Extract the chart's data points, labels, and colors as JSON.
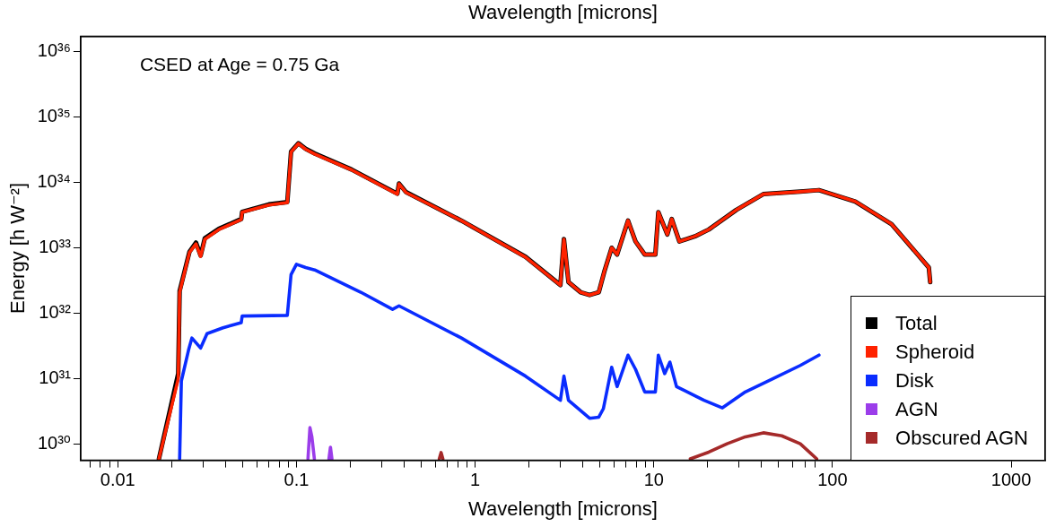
{
  "chart_data": {
    "type": "line",
    "x2label": "Wavelength [microns]",
    "xlabel": "Wavelength [microns]",
    "ylabel": "Energy [h W⁻²]",
    "annotations": [
      "CSED at Age = 0.75 Ga"
    ],
    "log": "xy",
    "grid": false,
    "legend": "bottom right",
    "marker": "none",
    "line_style": "solid",
    "xlim": [
      0.0062,
      1550
    ],
    "ylim": [
      5.7e+29,
      1.7e+36
    ],
    "xticks": [
      {
        "value": 0.007,
        "label": null
      },
      {
        "value": 0.008,
        "label": null
      },
      {
        "value": 0.009,
        "label": null
      },
      0.01,
      {
        "value": 0.02,
        "label": null
      },
      {
        "value": 0.03,
        "label": null
      },
      {
        "value": 0.04,
        "label": null
      },
      {
        "value": 0.05,
        "label": null
      },
      {
        "value": 0.06,
        "label": null
      },
      {
        "value": 0.07,
        "label": null
      },
      {
        "value": 0.08,
        "label": null
      },
      {
        "value": 0.09,
        "label": null
      },
      0.1,
      {
        "value": 0.2,
        "label": null
      },
      {
        "value": 0.3,
        "label": null
      },
      {
        "value": 0.4,
        "label": null
      },
      {
        "value": 0.5,
        "label": null
      },
      {
        "value": 0.6,
        "label": null
      },
      {
        "value": 0.7,
        "label": null
      },
      {
        "value": 0.8,
        "label": null
      },
      {
        "value": 0.9,
        "label": null
      },
      1,
      {
        "value": 2,
        "label": null
      },
      {
        "value": 3,
        "label": null
      },
      {
        "value": 4,
        "label": null
      },
      {
        "value": 5,
        "label": null
      },
      {
        "value": 6,
        "label": null
      },
      {
        "value": 7,
        "label": null
      },
      {
        "value": 8,
        "label": null
      },
      {
        "value": 9,
        "label": null
      },
      10,
      {
        "value": 20,
        "label": null
      },
      {
        "value": 30,
        "label": null
      },
      {
        "value": 40,
        "label": null
      },
      {
        "value": 50,
        "label": null
      },
      {
        "value": 60,
        "label": null
      },
      {
        "value": 70,
        "label": null
      },
      {
        "value": 80,
        "label": null
      },
      100,
      1000
    ],
    "yticks": [
      {
        "value": 1e+30,
        "label": "10³⁰"
      },
      {
        "value": 1e+31,
        "label": "10³¹"
      },
      {
        "value": 1e+32,
        "label": "10³²"
      },
      {
        "value": 1e+33,
        "label": "10³³"
      },
      {
        "value": 1e+34,
        "label": "10³⁴"
      },
      {
        "value": 1e+35,
        "label": "10³⁵"
      },
      {
        "value": 1e+36,
        "label": "10³⁶"
      }
    ],
    "series": [
      {
        "name": "Total",
        "color": "#000000",
        "x": [
          0.017,
          0.0218,
          0.0222,
          0.0252,
          0.0274,
          0.0291,
          0.0307,
          0.0368,
          0.0491,
          0.0497,
          0.0701,
          0.0889,
          0.0933,
          0.1025,
          0.1126,
          0.1265,
          0.2034,
          0.367,
          0.375,
          0.41,
          0.838,
          1.914,
          3.0,
          3.14,
          3.33,
          3.89,
          4.37,
          4.92,
          5.28,
          5.81,
          6.23,
          7.17,
          7.9,
          8.9,
          10.2,
          10.6,
          11.9,
          12.6,
          13.9,
          17.0,
          20.3,
          29,
          41,
          66,
          84,
          134,
          214,
          346,
          352
        ],
        "values": [
          6e+29,
          1.2e+31,
          2.2e+32,
          8.7e+32,
          1.2e+33,
          7.6e+32,
          1.4e+33,
          1.95e+33,
          2.75e+33,
          3.55e+33,
          4.6e+33,
          5e+33,
          2.95e+34,
          3.95e+34,
          3.25e+34,
          2.75e+34,
          1.57e+34,
          6.7e+33,
          9.6e+33,
          7.1e+33,
          2.6e+33,
          7.3e+32,
          2.7e+32,
          1.36e+33,
          3e+32,
          2.1e+32,
          1.9e+32,
          2.1e+32,
          4.3e+32,
          1e+33,
          7.9e+32,
          2.6e+33,
          1.25e+33,
          7.9e+32,
          7.9e+32,
          3.5e+33,
          1.6e+33,
          2.75e+33,
          1.25e+33,
          1.5e+33,
          1.9e+33,
          3.8e+33,
          6.6e+33,
          7.2e+33,
          7.6e+33,
          5.1e+33,
          2.3e+33,
          5e+32,
          3e+32
        ]
      },
      {
        "name": "Spheroid",
        "color": "#ff2200",
        "x": [
          0.017,
          0.0218,
          0.0222,
          0.0252,
          0.0274,
          0.0291,
          0.0307,
          0.0368,
          0.0491,
          0.0497,
          0.0701,
          0.0889,
          0.0933,
          0.1025,
          0.1126,
          0.1265,
          0.2034,
          0.367,
          0.375,
          0.41,
          0.838,
          1.914,
          3.0,
          3.14,
          3.33,
          3.89,
          4.37,
          4.92,
          5.28,
          5.81,
          6.23,
          7.17,
          7.9,
          8.9,
          10.2,
          10.6,
          11.9,
          12.6,
          13.9,
          17.0,
          20.3,
          29,
          41,
          66,
          84,
          134,
          214,
          346,
          352
        ],
        "values": [
          6e+29,
          1e+31,
          2.1e+32,
          8.5e+32,
          1.15e+33,
          7.4e+32,
          1.35e+33,
          1.9e+33,
          2.7e+33,
          3.5e+33,
          4.5e+33,
          4.9e+33,
          2.9e+34,
          3.9e+34,
          3.2e+34,
          2.7e+34,
          1.55e+34,
          6.6e+33,
          9.5e+33,
          7e+33,
          2.6e+33,
          7.2e+32,
          2.7e+32,
          1.35e+33,
          3e+32,
          2.1e+32,
          1.9e+32,
          2.1e+32,
          4.3e+32,
          1e+33,
          7.9e+32,
          2.6e+33,
          1.25e+33,
          7.9e+32,
          7.9e+32,
          3.5e+33,
          1.6e+33,
          2.75e+33,
          1.25e+33,
          1.5e+33,
          1.9e+33,
          3.8e+33,
          6.6e+33,
          7.2e+33,
          7.6e+33,
          5.1e+33,
          2.3e+33,
          5e+32,
          3e+32
        ]
      },
      {
        "name": "Disk",
        "color": "#0a2cff",
        "x": [
          0.0222,
          0.0227,
          0.0249,
          0.026,
          0.0291,
          0.0316,
          0.0388,
          0.0491,
          0.0497,
          0.0889,
          0.0933,
          0.1,
          0.1126,
          0.1265,
          0.229,
          0.345,
          0.375,
          0.838,
          1.914,
          3.0,
          3.14,
          3.33,
          4.37,
          4.92,
          5.22,
          5.81,
          6.23,
          7.17,
          7.9,
          8.9,
          10.2,
          10.6,
          11.5,
          12.3,
          13.4,
          17,
          19.1,
          24.2,
          32.5,
          46.3,
          66,
          84
        ],
        "values": [
          6e+29,
          9.3e+30,
          2.75e+31,
          4.2e+31,
          2.95e+31,
          4.9e+31,
          6e+31,
          7.2e+31,
          9.1e+31,
          9.3e+31,
          3.9e+32,
          5.6e+32,
          5e+32,
          4.6e+32,
          2.1e+32,
          1.15e+32,
          1.3e+32,
          4.2e+31,
          1.1e+31,
          4.7e+30,
          1.1e+31,
          4.7e+30,
          2.5e+30,
          2.6e+30,
          3.5e+30,
          1.5e+31,
          7.6e+30,
          2.3e+31,
          1.4e+31,
          6.3e+30,
          6.3e+30,
          2.3e+31,
          1.2e+31,
          1.8e+31,
          7.6e+30,
          5.5e+30,
          4.7e+30,
          3.6e+30,
          6.3e+30,
          1e+31,
          1.6e+31,
          2.3e+31
        ]
      },
      {
        "name": "AGN",
        "color": "#9b3dea",
        "x": [
          0.116,
          0.119,
          0.122,
          0.126,
          0.14,
          0.152,
          0.155,
          0.158
        ],
        "values": [
          6e+29,
          1.8e+30,
          1.3e+30,
          6e+29,
          null,
          6e+29,
          9e+29,
          6e+29
        ]
      },
      {
        "name": "Obscured AGN",
        "color": "#a52a2a",
        "x": [
          0.63,
          0.645,
          0.66,
          5,
          16,
          20.3,
          25.7,
          32.5,
          41,
          52,
          66,
          81.6
        ],
        "values": [
          6e+29,
          7.5e+29,
          6e+29,
          null,
          6e+29,
          7.6e+29,
          1.02e+30,
          1.3e+30,
          1.5e+30,
          1.35e+30,
          1.02e+30,
          6e+29
        ]
      }
    ]
  }
}
